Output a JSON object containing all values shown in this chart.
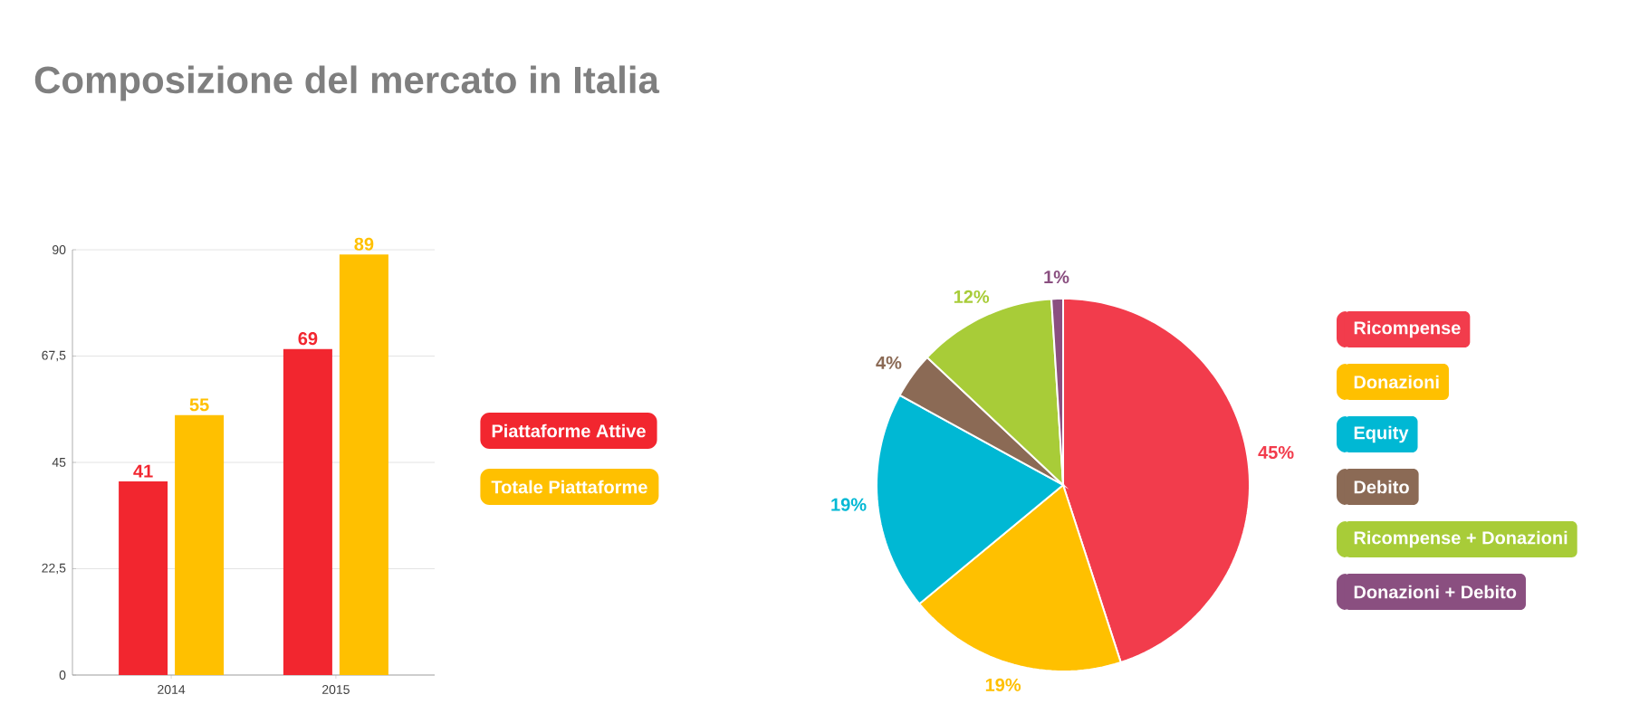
{
  "chart_data": [
    {
      "type": "bar",
      "title": "Composizione del mercato in Italia",
      "categories": [
        "2014",
        "2015"
      ],
      "series": [
        {
          "name": "Piattaforme Attive",
          "color": "#f2262f",
          "values": [
            41,
            69
          ]
        },
        {
          "name": "Totale Piattaforme",
          "color": "#ffc000",
          "values": [
            55,
            89
          ]
        }
      ],
      "ylim": [
        0,
        90
      ],
      "yticks": [
        0,
        {
          "value": 22.5,
          "label": "22,5"
        },
        45,
        {
          "value": 67.5,
          "label": "67,5"
        },
        90
      ],
      "grid": "y",
      "legend": "right",
      "data_labels": true
    },
    {
      "type": "pie",
      "categories": [
        "Ricompense",
        "Donazioni",
        "Equity",
        "Debito",
        "Ricompense + Donazioni",
        "Donazioni + Debito"
      ],
      "values": [
        45,
        19,
        19,
        4,
        12,
        1
      ],
      "colors": [
        "#f23c4c",
        "#ffc000",
        "#00b8d4",
        "#8b6a55",
        "#a8cc38",
        "#8a4f80"
      ],
      "value_labels": [
        "45%",
        "19%",
        "19%",
        "4%",
        "12%",
        "1%"
      ],
      "legend": "right"
    }
  ]
}
